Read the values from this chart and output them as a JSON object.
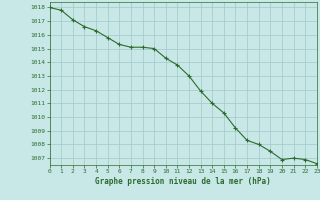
{
  "x": [
    0,
    1,
    2,
    3,
    4,
    5,
    6,
    7,
    8,
    9,
    10,
    11,
    12,
    13,
    14,
    15,
    16,
    17,
    18,
    19,
    20,
    21,
    22,
    23
  ],
  "y": [
    1018.0,
    1017.8,
    1017.1,
    1016.6,
    1016.3,
    1015.8,
    1015.3,
    1015.1,
    1015.1,
    1015.0,
    1014.3,
    1013.8,
    1013.0,
    1011.9,
    1011.0,
    1010.3,
    1009.2,
    1008.3,
    1008.0,
    1007.5,
    1006.9,
    1007.0,
    1006.9,
    1006.6
  ],
  "line_color": "#2d6a2d",
  "marker": "+",
  "marker_color": "#2d6a2d",
  "bg_color": "#c8e8e8",
  "grid_color": "#a0c8c8",
  "xlabel": "Graphe pression niveau de la mer (hPa)",
  "xlabel_color": "#2d6a2d",
  "tick_color": "#2d6a2d",
  "ylabel_values": [
    1007,
    1008,
    1009,
    1010,
    1011,
    1012,
    1013,
    1014,
    1015,
    1016,
    1017,
    1018
  ],
  "xlim": [
    0,
    23
  ],
  "ylim": [
    1006.5,
    1018.4
  ]
}
